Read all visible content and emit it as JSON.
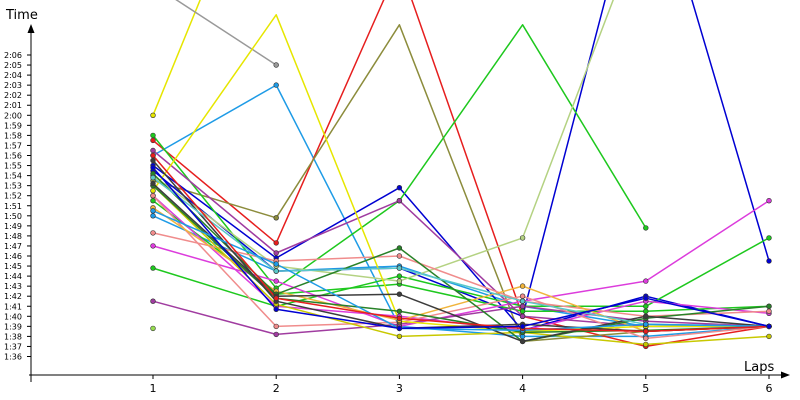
{
  "chart_data": {
    "type": "line",
    "xlabel": "Laps",
    "ylabel": "Time",
    "x": [
      1,
      2,
      3,
      4,
      5,
      6
    ],
    "x_tick_labels": [
      "1",
      "2",
      "3",
      "4",
      "5",
      "6"
    ],
    "y_unit": "seconds",
    "y_tick_labels": [
      "1:36",
      "1:37",
      "1:38",
      "1:39",
      "1:40",
      "1:41",
      "1:42",
      "1:43",
      "1:44",
      "1:45",
      "1:46",
      "1:47",
      "1:48",
      "1:49",
      "1:50",
      "1:51",
      "1:52",
      "1:53",
      "1:54",
      "1:55",
      "1:56",
      "1:57",
      "1:58",
      "1:59",
      "2:00",
      "2:01",
      "2:02",
      "2:03",
      "2:04",
      "2:05",
      "2:06"
    ],
    "ylim": [
      96,
      126
    ],
    "grid": false,
    "legend": "none",
    "series": [
      {
        "color": "#e6e600",
        "values": [
          120,
          150,
          null,
          null,
          null,
          null
        ]
      },
      {
        "color": "#999999",
        "values": [
          133,
          125,
          null,
          null,
          null,
          null
        ]
      },
      {
        "color": "#1e9be6",
        "values": [
          116,
          123,
          99,
          98,
          98,
          99
        ]
      },
      {
        "color": "#1e9be6",
        "values": [
          110,
          104.5,
          105,
          101,
          99,
          99
        ]
      },
      {
        "color": "#e61e1e",
        "values": [
          117.5,
          107.3,
          135,
          100,
          97,
          99
        ]
      },
      {
        "color": "#8c8c3c",
        "values": [
          113.5,
          109.8,
          129,
          97.5,
          98.5,
          99
        ]
      },
      {
        "color": "#0000d2",
        "values": [
          115,
          105.8,
          112.8,
          98.6,
          102,
          99
        ]
      },
      {
        "color": "#0000d2",
        "values": [
          114.5,
          104.5,
          104.8,
          100,
          147,
          105.5
        ]
      },
      {
        "color": "#1ec81e",
        "values": [
          118,
          102.8,
          111.5,
          129,
          108.8,
          null
        ]
      },
      {
        "color": "#1ec81e",
        "values": [
          104.8,
          101,
          104,
          101,
          101,
          107.8
        ]
      },
      {
        "color": "#1ec81e",
        "values": [
          111.5,
          102.2,
          103.2,
          100.5,
          100.5,
          101
        ]
      },
      {
        "color": "#dc3cdc",
        "values": [
          107,
          103.5,
          99,
          101.5,
          103.5,
          111.5
        ]
      },
      {
        "color": "#dc3cdc",
        "values": [
          112,
          101,
          100,
          98.6,
          101.5,
          100.3
        ]
      },
      {
        "color": "#a03ca0",
        "values": [
          101.5,
          98.2,
          99.2,
          101,
          99.5,
          99
        ]
      },
      {
        "color": "#a03ca0",
        "values": [
          116.5,
          106.3,
          111.5,
          100,
          99,
          99
        ]
      },
      {
        "color": "#b4d282",
        "values": [
          114,
          105,
          103.5,
          107.8,
          140,
          null
        ]
      },
      {
        "color": "#f08c8c",
        "values": [
          108.3,
          105.5,
          106,
          101.5,
          100,
          100.5
        ]
      },
      {
        "color": "#f08c8c",
        "values": [
          112,
          99,
          99.4,
          102,
          97.8,
          99
        ]
      },
      {
        "color": "#c8c800",
        "values": [
          113,
          101.2,
          98,
          98.4,
          97.2,
          98
        ]
      },
      {
        "color": "#e6e600",
        "values": [
          112.5,
          130,
          99.5,
          98.5,
          99,
          99
        ]
      },
      {
        "color": "#f0b43c",
        "values": [
          110.8,
          102.5,
          99.6,
          103,
          98.5,
          99
        ]
      },
      {
        "color": "#288228",
        "values": [
          114.2,
          102.2,
          106.8,
          97.5,
          99.8,
          101
        ]
      },
      {
        "color": "#288228",
        "values": [
          113,
          101.8,
          100.5,
          98.4,
          98.6,
          99
        ]
      },
      {
        "color": "#3c3c3c",
        "values": [
          113.2,
          102,
          102.2,
          97.5,
          100,
          99
        ]
      },
      {
        "color": "#3c3c3c",
        "values": [
          115.5,
          101.5,
          98.8,
          99.2,
          98.5,
          99
        ]
      },
      {
        "color": "#5ac8c8",
        "values": [
          113.8,
          104.5,
          104.8,
          101.5,
          99.2,
          99
        ]
      },
      {
        "color": "#96dc50",
        "values": [
          98.8,
          null,
          null,
          null,
          null,
          null
        ]
      },
      {
        "color": "#1e9be6",
        "values": [
          110.5,
          105.2,
          98.8,
          98.6,
          99.2,
          99
        ]
      },
      {
        "color": "#e61e1e",
        "values": [
          116,
          101.8,
          99.8,
          98.8,
          98.5,
          99
        ]
      },
      {
        "color": "#0000d2",
        "values": [
          114.8,
          100.7,
          98.8,
          99,
          101.8,
          99
        ]
      }
    ]
  }
}
